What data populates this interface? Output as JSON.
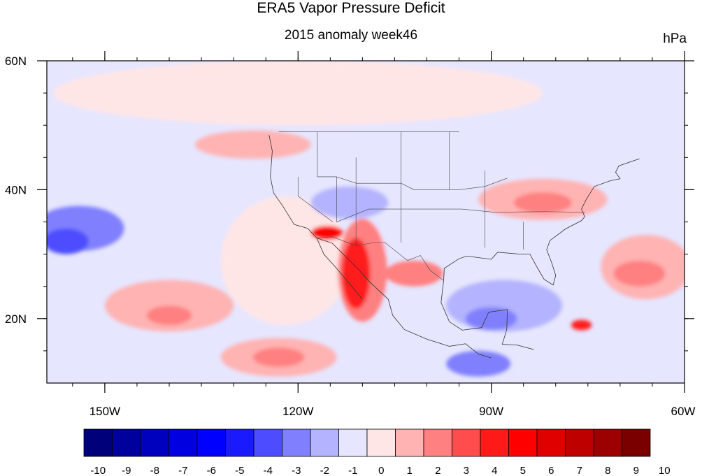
{
  "chart_data": {
    "type": "heatmap",
    "title": "ERA5 Vapor Pressure Deficit",
    "subtitle": "2015 anomaly week46",
    "units": "hPa",
    "x_ticks": [
      {
        "lon": -150,
        "label": "150W"
      },
      {
        "lon": -120,
        "label": "120W"
      },
      {
        "lon": -90,
        "label": "90W"
      },
      {
        "lon": -60,
        "label": "60W"
      }
    ],
    "y_ticks": [
      {
        "lat": 60,
        "label": "60N"
      },
      {
        "lat": 40,
        "label": "40N"
      },
      {
        "lat": 20,
        "label": "20N"
      }
    ],
    "lon_range": [
      -159,
      -60
    ],
    "lat_range": [
      10,
      60
    ],
    "colorbar": {
      "levels": [
        -10,
        -9,
        -8,
        -7,
        -6,
        -5,
        -4,
        -3,
        -2,
        -1,
        0,
        1,
        2,
        3,
        4,
        5,
        6,
        7,
        8,
        9,
        10
      ],
      "labels": [
        "-10",
        "-9",
        "-8",
        "-7",
        "-6",
        "-5",
        "-4",
        "-3",
        "-2",
        "-1",
        "0",
        "1",
        "2",
        "3",
        "4",
        "5",
        "6",
        "7",
        "8",
        "9",
        "10"
      ],
      "colors": [
        "#00007a",
        "#00009c",
        "#0000bf",
        "#0000e0",
        "#0000ff",
        "#1a1aff",
        "#4d4dff",
        "#8080ff",
        "#b3b3ff",
        "#e6e6ff",
        "#ffe6e6",
        "#ffb3b3",
        "#ff8080",
        "#ff4d4d",
        "#ff1a1a",
        "#ff0000",
        "#e00000",
        "#bf0000",
        "#9c0000",
        "#7a0000"
      ]
    },
    "background_level": -1,
    "anomaly_regions": [
      {
        "name": "central-pacific-dry",
        "lon": -154,
        "lat": 34,
        "rx": 7,
        "ry": 3.5,
        "value": -3
      },
      {
        "name": "central-pacific-dry-core",
        "lon": -156,
        "lat": 32,
        "rx": 3.5,
        "ry": 2,
        "value": -4
      },
      {
        "name": "north-pacific-moist",
        "lon": -120,
        "lat": 55,
        "rx": 38,
        "ry": 5,
        "value": 0
      },
      {
        "name": "gulf-alaska-moist",
        "lon": -127,
        "lat": 47,
        "rx": 9,
        "ry": 2.2,
        "value": 1
      },
      {
        "name": "east-pacific-moist",
        "lon": -122,
        "lat": 29,
        "rx": 10,
        "ry": 10,
        "value": 0
      },
      {
        "name": "subtropic-moist",
        "lon": -140,
        "lat": 22,
        "rx": 10,
        "ry": 4,
        "value": 1
      },
      {
        "name": "subtropic-moist-2",
        "lon": -140,
        "lat": 20.5,
        "rx": 3.5,
        "ry": 1.5,
        "value": 2
      },
      {
        "name": "south-pacific-moist",
        "lon": -123,
        "lat": 14,
        "rx": 9,
        "ry": 3,
        "value": 1
      },
      {
        "name": "south-pacific-moist-2",
        "lon": -123,
        "lat": 14,
        "rx": 4,
        "ry": 1.5,
        "value": 2
      },
      {
        "name": "great-basin-dry",
        "lon": -112,
        "lat": 38,
        "rx": 6,
        "ry": 2.5,
        "value": -2
      },
      {
        "name": "arizona-dry",
        "lon": -105,
        "lat": 33,
        "rx": 6,
        "ry": 3,
        "value": -1
      },
      {
        "name": "baja-california-dry",
        "lon": -110,
        "lat": 27.5,
        "rx": 3.8,
        "ry": 8,
        "value": 2
      },
      {
        "name": "baja-california-core",
        "lon": -111,
        "lat": 27,
        "rx": 2.2,
        "ry": 5.5,
        "value": 4
      },
      {
        "name": "socal-hotspot",
        "lon": -115.5,
        "lat": 33.3,
        "rx": 2.5,
        "ry": 1.1,
        "value": 5
      },
      {
        "name": "north-mexico-dry",
        "lon": -102,
        "lat": 27,
        "rx": 4.5,
        "ry": 2,
        "value": 2
      },
      {
        "name": "ohio-valley-dry",
        "lon": -82,
        "lat": 38.5,
        "rx": 10,
        "ry": 3.2,
        "value": 1
      },
      {
        "name": "ohio-valley-core",
        "lon": -82,
        "lat": 38,
        "rx": 4.5,
        "ry": 1.6,
        "value": 2
      },
      {
        "name": "gulf-mexico-moist",
        "lon": -88,
        "lat": 22,
        "rx": 9,
        "ry": 4,
        "value": -2
      },
      {
        "name": "gulf-mexico-core",
        "lon": -90,
        "lat": 20,
        "rx": 4,
        "ry": 1.8,
        "value": -3
      },
      {
        "name": "caribbean-moist",
        "lon": -92,
        "lat": 13,
        "rx": 5,
        "ry": 2,
        "value": -3
      },
      {
        "name": "west-atlantic-dry",
        "lon": -66,
        "lat": 28,
        "rx": 7,
        "ry": 5,
        "value": 1
      },
      {
        "name": "west-atlantic-core",
        "lon": -67,
        "lat": 27,
        "rx": 4,
        "ry": 2,
        "value": 2
      },
      {
        "name": "caribbean-spot",
        "lon": -76,
        "lat": 19,
        "rx": 1.6,
        "ry": 0.8,
        "value": 4
      }
    ]
  }
}
